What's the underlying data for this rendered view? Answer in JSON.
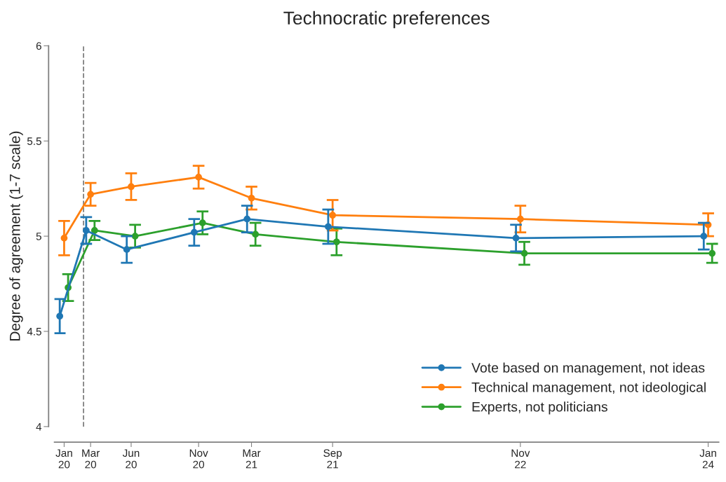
{
  "chart_data": {
    "type": "line",
    "title": "Technocratic preferences",
    "ylabel": "Degree of agreement (1-7 scale)",
    "xlim": [
      "2019-12-10",
      "2024-01-25"
    ],
    "ylim": [
      4,
      6
    ],
    "xticks": [
      {
        "value": "2020-01-01",
        "label": "Jan\n20"
      },
      {
        "value": "2020-03-01",
        "label": "Mar\n20"
      },
      {
        "value": "2020-06-01",
        "label": "Jun\n20"
      },
      {
        "value": "2020-11-01",
        "label": "Nov\n20"
      },
      {
        "value": "2021-03-01",
        "label": "Mar\n21"
      },
      {
        "value": "2021-09-01",
        "label": "Sep\n21"
      },
      {
        "value": "2022-11-01",
        "label": "Nov\n22"
      },
      {
        "value": "2024-01-01",
        "label": "Jan\n24"
      }
    ],
    "yticks": [
      4,
      4.5,
      5,
      5.5,
      6
    ],
    "ref_lines": [
      {
        "axis": "x",
        "value": "2020-02-14",
        "color": "#808080",
        "line_style": "dashed"
      }
    ],
    "grid": false,
    "legend": "bottom right",
    "marker": "circle",
    "line_style": "solid",
    "series": [
      {
        "name": "Vote based on management, not ideas",
        "color": "#1f77b4",
        "x": [
          "2019-12-22",
          "2020-02-20",
          "2020-05-22",
          "2020-10-22",
          "2021-02-19",
          "2021-08-22",
          "2022-10-22",
          "2023-12-22"
        ],
        "values": [
          4.58,
          5.03,
          4.93,
          5.02,
          5.09,
          5.05,
          4.99,
          5.0
        ],
        "errors": [
          0.09,
          0.07,
          0.07,
          0.07,
          0.07,
          0.09,
          0.07,
          0.07
        ]
      },
      {
        "name": "Technical management, not ideological",
        "color": "#ff7f0e",
        "x": [
          "2020-01-01",
          "2020-03-01",
          "2020-06-01",
          "2020-11-01",
          "2021-03-01",
          "2021-09-01",
          "2022-11-01",
          "2024-01-01"
        ],
        "values": [
          4.99,
          5.22,
          5.26,
          5.31,
          5.2,
          5.11,
          5.09,
          5.06
        ],
        "errors": [
          0.09,
          0.06,
          0.07,
          0.06,
          0.06,
          0.08,
          0.07,
          0.06
        ]
      },
      {
        "name": "Experts, not politicians",
        "color": "#2ca02c",
        "x": [
          "2020-01-10",
          "2020-03-10",
          "2020-06-10",
          "2020-11-10",
          "2021-03-10",
          "2021-09-10",
          "2022-11-10",
          "2024-01-10"
        ],
        "values": [
          4.73,
          5.03,
          5.0,
          5.07,
          5.01,
          4.97,
          4.91,
          4.91
        ],
        "errors": [
          0.07,
          0.05,
          0.06,
          0.06,
          0.06,
          0.07,
          0.06,
          0.05
        ]
      }
    ]
  }
}
